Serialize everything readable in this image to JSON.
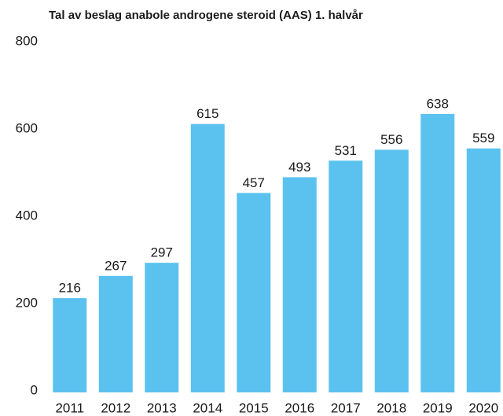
{
  "chart_data": {
    "type": "bar",
    "title": "Tal av beslag anabole androgene steroid (AAS) 1. halvår",
    "categories": [
      "2011",
      "2012",
      "2013",
      "2014",
      "2015",
      "2016",
      "2017",
      "2018",
      "2019",
      "2020"
    ],
    "values": [
      216,
      267,
      297,
      615,
      457,
      493,
      531,
      556,
      638,
      559
    ],
    "color": "#5bc2ef",
    "ylim": [
      0,
      800
    ],
    "yticks": [
      0,
      200,
      400,
      600,
      800
    ],
    "grid": false
  }
}
